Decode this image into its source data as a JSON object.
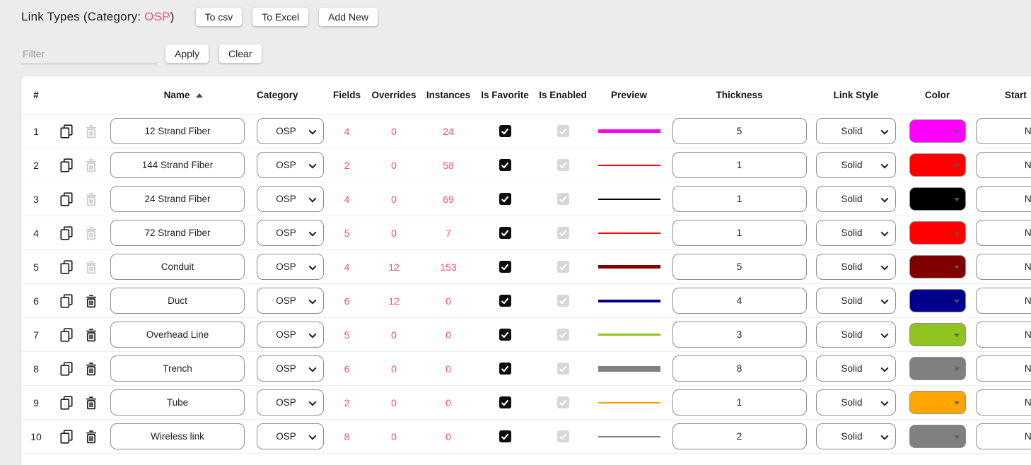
{
  "header": {
    "title_prefix": "Link Types (Category: ",
    "category_value": "OSP",
    "title_suffix": ")",
    "buttons": {
      "to_csv": "To csv",
      "to_excel": "To Excel",
      "add_new": "Add New"
    }
  },
  "filter": {
    "placeholder": "Filter",
    "apply_label": "Apply",
    "clear_label": "Clear"
  },
  "colors": {
    "accent_red": "#f4516c",
    "favorite_checkbox": "#0d0d0d",
    "enabled_checkbox_disabled": "#d7d7d7"
  },
  "icons": {
    "copy": "copy-icon",
    "trash": "trash-icon",
    "chevron_down": "chevron-down-icon",
    "sort": "sort-ascending-icon",
    "check": "checkmark-icon",
    "caret_down": "caret-down-icon"
  },
  "table": {
    "sort_column": "Name",
    "sort_direction": "ascending",
    "columns": {
      "index": "#",
      "name": "Name",
      "category": "Category",
      "fields": "Fields",
      "overrides": "Overrides",
      "instances": "Instances",
      "is_favorite": "Is Favorite",
      "is_enabled": "Is Enabled",
      "preview": "Preview",
      "thickness": "Thickness",
      "link_style": "Link Style",
      "color": "Color",
      "start": "Start"
    },
    "rows": [
      {
        "index": 1,
        "name": "12 Strand Fiber",
        "category": "OSP",
        "fields": 4,
        "overrides": 0,
        "instances": 24,
        "is_favorite": true,
        "is_enabled": true,
        "color": "#ff00ff",
        "thickness": "5",
        "link_style": "Solid",
        "start": "None",
        "delete_enabled": false
      },
      {
        "index": 2,
        "name": "144 Strand Fiber",
        "category": "OSP",
        "fields": 2,
        "overrides": 0,
        "instances": 58,
        "is_favorite": true,
        "is_enabled": true,
        "color": "#ff0000",
        "thickness": "1",
        "link_style": "Solid",
        "start": "None",
        "delete_enabled": false
      },
      {
        "index": 3,
        "name": "24 Strand Fiber",
        "category": "OSP",
        "fields": 4,
        "overrides": 0,
        "instances": 69,
        "is_favorite": true,
        "is_enabled": true,
        "color": "#000000",
        "thickness": "1",
        "link_style": "Solid",
        "start": "None",
        "delete_enabled": false
      },
      {
        "index": 4,
        "name": "72 Strand Fiber",
        "category": "OSP",
        "fields": 5,
        "overrides": 0,
        "instances": 7,
        "is_favorite": true,
        "is_enabled": true,
        "color": "#ff0000",
        "thickness": "1",
        "link_style": "Solid",
        "start": "None",
        "delete_enabled": false
      },
      {
        "index": 5,
        "name": "Conduit",
        "category": "OSP",
        "fields": 4,
        "overrides": 12,
        "instances": 153,
        "is_favorite": true,
        "is_enabled": true,
        "color": "#7f0000",
        "thickness": "5",
        "link_style": "Solid",
        "start": "None",
        "delete_enabled": false
      },
      {
        "index": 6,
        "name": "Duct",
        "category": "OSP",
        "fields": 6,
        "overrides": 12,
        "instances": 0,
        "is_favorite": true,
        "is_enabled": true,
        "color": "#00008b",
        "thickness": "4",
        "link_style": "Solid",
        "start": "None",
        "delete_enabled": true
      },
      {
        "index": 7,
        "name": "Overhead Line",
        "category": "OSP",
        "fields": 5,
        "overrides": 0,
        "instances": 0,
        "is_favorite": true,
        "is_enabled": true,
        "color": "#8fc31f",
        "thickness": "3",
        "link_style": "Solid",
        "start": "None",
        "delete_enabled": true
      },
      {
        "index": 8,
        "name": "Trench",
        "category": "OSP",
        "fields": 6,
        "overrides": 0,
        "instances": 0,
        "is_favorite": true,
        "is_enabled": true,
        "color": "#808080",
        "thickness": "8",
        "link_style": "Solid",
        "start": "None",
        "delete_enabled": true
      },
      {
        "index": 9,
        "name": "Tube",
        "category": "OSP",
        "fields": 2,
        "overrides": 0,
        "instances": 0,
        "is_favorite": true,
        "is_enabled": true,
        "color": "#ffa500",
        "thickness": "1",
        "link_style": "Solid",
        "start": "None",
        "delete_enabled": true
      },
      {
        "index": 10,
        "name": "Wireless link",
        "category": "OSP",
        "fields": 8,
        "overrides": 0,
        "instances": 0,
        "is_favorite": true,
        "is_enabled": true,
        "color": "#808080",
        "thickness": "2",
        "link_style": "Solid",
        "start": "None",
        "delete_enabled": true
      }
    ]
  }
}
